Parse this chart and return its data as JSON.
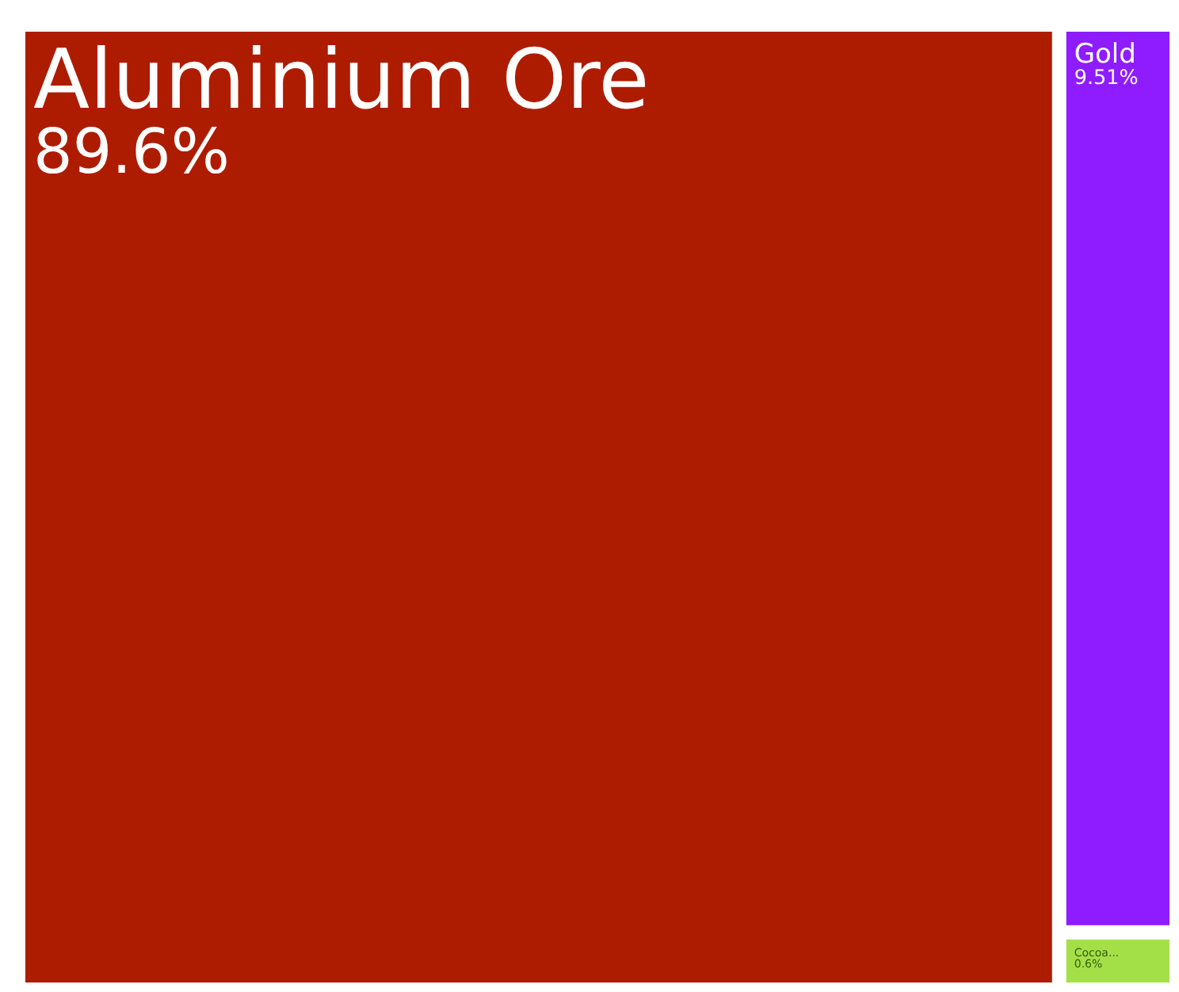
{
  "chart_data": {
    "type": "other",
    "categories": [
      "Aluminium Ore",
      "Gold",
      "Cocoa..."
    ],
    "values": [
      89.6,
      9.51,
      0.6
    ],
    "value_labels": [
      "89.6%",
      "9.51%",
      "0.6%"
    ],
    "colors": [
      "#ae1c00",
      "#8f1cff",
      "#a3e048"
    ]
  }
}
